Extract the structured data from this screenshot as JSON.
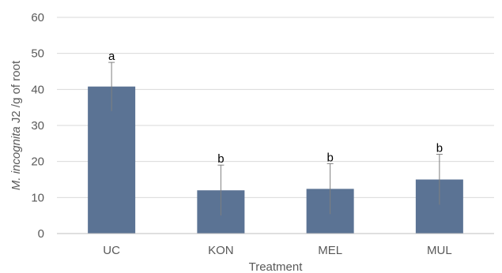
{
  "chart_data": {
    "type": "bar",
    "categories": [
      "UC",
      "KON",
      "MEL",
      "MUL"
    ],
    "values": [
      40.8,
      12.0,
      12.4,
      15.0
    ],
    "error_upper": [
      47.5,
      19.0,
      19.4,
      22.0
    ],
    "error_lower": [
      34.0,
      5.0,
      5.4,
      8.0
    ],
    "significance": [
      "a",
      "b",
      "b",
      "b"
    ],
    "xlabel": "Treatment",
    "ylabel_italic": "M. incognita",
    "ylabel_rest": " J2 /g of root",
    "ylim": [
      0,
      60
    ],
    "yticks": [
      0,
      10,
      20,
      30,
      40,
      50,
      60
    ],
    "grid": true,
    "bar_color": "#5b7394",
    "error_color": "#7f7f7f"
  }
}
